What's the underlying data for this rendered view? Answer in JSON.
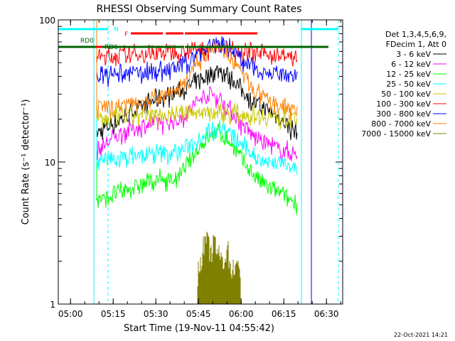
{
  "chart_data": {
    "type": "line",
    "title": "RHESSI Observing Summary Count Rates",
    "xlabel": "Start Time (19-Nov-11 04:55:42)",
    "ylabel": "Count Rate (s⁻¹ detector⁻¹)",
    "ylog": true,
    "xlim": [
      0,
      100
    ],
    "ylim": [
      1,
      100
    ],
    "x_units": "minutes after 04:55:42",
    "x_ticks": [
      {
        "value": 4.3,
        "label": "05:00"
      },
      {
        "value": 19.3,
        "label": "05:15"
      },
      {
        "value": 34.3,
        "label": "05:30"
      },
      {
        "value": 49.3,
        "label": "05:45"
      },
      {
        "value": 64.3,
        "label": "06:00"
      },
      {
        "value": 79.3,
        "label": "06:15"
      },
      {
        "value": 94.3,
        "label": "06:30"
      }
    ],
    "y_ticks": [
      {
        "value": 1,
        "label": "1"
      },
      {
        "value": 10,
        "label": "10"
      },
      {
        "value": 100,
        "label": "100"
      }
    ],
    "legend": {
      "position": "right",
      "header": [
        "Det 1,3,4,5,6,9,",
        "FDecim 1, Att 0"
      ]
    },
    "series": [
      {
        "name": "3 - 6 keV",
        "color": "#000000",
        "x": [
          13.5,
          16,
          20,
          25,
          30,
          35,
          40,
          43,
          46,
          50,
          54,
          57,
          60,
          63,
          66,
          69,
          72,
          75,
          78,
          81,
          84
        ],
        "y": [
          16,
          17,
          19,
          22,
          25,
          28,
          30,
          32,
          34,
          38,
          42,
          45,
          40,
          35,
          30,
          26,
          24,
          22,
          20,
          18,
          16
        ]
      },
      {
        "name": "6 - 12 keV",
        "color": "#ff00ff",
        "x": [
          13.5,
          16,
          20,
          25,
          30,
          35,
          40,
          43,
          46,
          50,
          54,
          57,
          60,
          63,
          66,
          69,
          72,
          75,
          78,
          81,
          84
        ],
        "y": [
          12,
          13,
          15,
          17,
          18,
          19,
          19,
          20,
          23,
          28,
          30,
          28,
          24,
          20,
          17,
          15,
          14,
          13,
          12,
          12,
          11
        ]
      },
      {
        "name": "12 - 25 keV",
        "color": "#00ff00",
        "x": [
          13.5,
          16,
          20,
          25,
          30,
          35,
          40,
          43,
          46,
          50,
          54,
          57,
          60,
          63,
          66,
          69,
          72,
          75,
          78,
          81,
          84
        ],
        "y": [
          5.5,
          5.5,
          6,
          6.5,
          7,
          7.5,
          7.5,
          8,
          10,
          13,
          15.5,
          16,
          14,
          11.5,
          9.5,
          8,
          7,
          6.5,
          6,
          5.5,
          5.2
        ]
      },
      {
        "name": "25 - 50 keV",
        "color": "#00ffff",
        "x": [
          13.5,
          16,
          20,
          25,
          30,
          35,
          40,
          43,
          46,
          50,
          54,
          57,
          60,
          63,
          66,
          69,
          72,
          75,
          78,
          81,
          84
        ],
        "y": [
          10,
          10,
          10.5,
          11,
          11,
          11.5,
          11.5,
          12,
          13,
          15,
          17,
          18,
          16,
          14,
          12.5,
          11,
          10.5,
          10,
          10,
          9.5,
          9.2
        ]
      },
      {
        "name": "50 - 100 keV",
        "color": "#c8c800",
        "x": [
          13.5,
          16,
          20,
          25,
          30,
          35,
          40,
          43,
          46,
          50,
          54,
          57,
          60,
          63,
          66,
          69,
          72,
          75,
          78,
          81,
          84
        ],
        "y": [
          20,
          20,
          20.5,
          21,
          21,
          21.5,
          22,
          22,
          22,
          22.5,
          22.5,
          22.5,
          22,
          22,
          21.5,
          21.5,
          21,
          21,
          20.5,
          20.5,
          20
        ]
      },
      {
        "name": "100 - 300 keV",
        "color": "#ff0000",
        "x": [
          13.5,
          16,
          20,
          25,
          30,
          35,
          40,
          43,
          46,
          50,
          54,
          57,
          60,
          63,
          66,
          69,
          72,
          75,
          78,
          81,
          84
        ],
        "y": [
          55,
          55,
          56,
          57,
          58,
          59,
          60,
          61,
          62,
          62,
          63,
          63,
          62,
          61,
          60,
          59,
          58,
          57,
          56,
          55,
          55
        ]
      },
      {
        "name": "300 - 800 keV",
        "color": "#0000ff",
        "x": [
          13.5,
          16,
          20,
          25,
          30,
          35,
          40,
          43,
          46,
          50,
          54,
          57,
          60,
          63,
          66,
          69,
          72,
          75,
          78,
          81,
          84
        ],
        "y": [
          40,
          40,
          41,
          42,
          43,
          44,
          45,
          47,
          52,
          60,
          67,
          70,
          64,
          57,
          50,
          46,
          44,
          42,
          41,
          40,
          39
        ]
      },
      {
        "name": "800 - 7000 keV",
        "color": "#ff8000",
        "x": [
          13.5,
          16,
          20,
          25,
          30,
          35,
          40,
          43,
          46,
          50,
          54,
          57,
          60,
          63,
          66,
          69,
          72,
          75,
          78,
          81,
          84
        ],
        "y": [
          24,
          24,
          25,
          26,
          27,
          28,
          30,
          33,
          40,
          52,
          62,
          64,
          57,
          47,
          38,
          32,
          28,
          26,
          25,
          24,
          24
        ]
      },
      {
        "name": "7000 - 15000 keV",
        "color": "#808000",
        "x": [
          49,
          50.5,
          52,
          53.5,
          55,
          56.5,
          58,
          59.5,
          61,
          62.5,
          64
        ],
        "y": [
          1.6,
          2.3,
          2.9,
          2.3,
          2.7,
          2.2,
          2.0,
          2.5,
          1.7,
          2.0,
          1.5
        ]
      }
    ],
    "flag_bars": [
      {
        "label": "N",
        "color": "#00ffff",
        "segments": [
          [
            0,
            17.5
          ],
          [
            85.5,
            98.5
          ]
        ]
      },
      {
        "label": "F",
        "color": "#ff0000",
        "segments": [
          [
            25.5,
            36.8
          ],
          [
            37.8,
            44
          ],
          [
            44.5,
            70
          ]
        ]
      },
      {
        "label": "RD0",
        "color": "#006400",
        "segments": [
          [
            0,
            44
          ],
          [
            44.5,
            95
          ]
        ]
      },
      {
        "label": "RD6",
        "color": "#ff0000",
        "segments": [
          [
            13,
            15.5
          ]
        ]
      }
    ],
    "vlines": [
      {
        "x": 12.5,
        "color": "#00ffff",
        "style": "solid"
      },
      {
        "x": 17.5,
        "color": "#00ffff",
        "style": "dashed"
      },
      {
        "x": 85.5,
        "color": "#00ffff",
        "style": "solid"
      },
      {
        "x": 98.5,
        "color": "#00ffff",
        "style": "dashed"
      },
      {
        "x": 89.0,
        "color": "#ff00ff",
        "style": "solid"
      },
      {
        "x": 89.0,
        "color": "#0000ff",
        "style": "solid"
      }
    ]
  },
  "footer": {
    "date": "22-Oct-2021 14:21"
  }
}
